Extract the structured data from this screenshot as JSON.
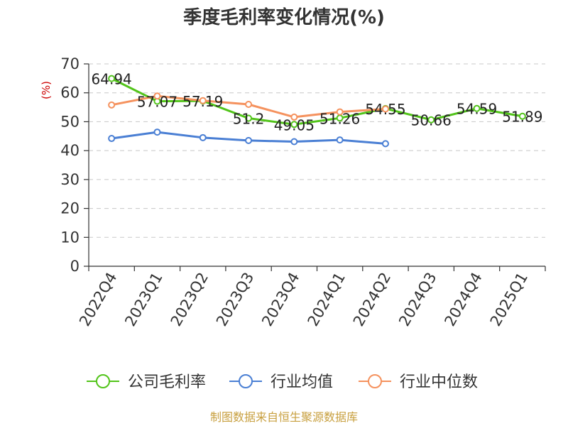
{
  "chart_data": {
    "type": "line",
    "title": "季度毛利率变化情况(%)",
    "ylabel": "(%)",
    "xlabel": "",
    "categories": [
      "2022Q4",
      "2023Q1",
      "2023Q2",
      "2023Q3",
      "2023Q4",
      "2024Q1",
      "2024Q2",
      "2024Q3",
      "2024Q4",
      "2025Q1"
    ],
    "ylim": [
      0,
      70
    ],
    "yticks": [
      0,
      10,
      20,
      30,
      40,
      50,
      60,
      70
    ],
    "grid": true,
    "legend_position": "bottom",
    "series": [
      {
        "name": "公司毛利率",
        "color": "#52c41a",
        "values": [
          64.94,
          57.07,
          57.19,
          51.2,
          49.05,
          51.26,
          54.55,
          50.66,
          54.59,
          51.89
        ],
        "labels": [
          "64.94",
          "57.07",
          "57.19",
          "51.2",
          "49.05",
          "51.26",
          "54.55",
          "50.66",
          "54.59",
          "51.89"
        ]
      },
      {
        "name": "行业均值",
        "color": "#4a7fd4",
        "values": [
          44.2,
          46.4,
          44.5,
          43.5,
          43.1,
          43.7,
          42.4,
          null,
          null,
          null
        ]
      },
      {
        "name": "行业中位数",
        "color": "#f5925e",
        "values": [
          55.8,
          58.9,
          57.3,
          56.0,
          51.6,
          53.4,
          54.4,
          null,
          null,
          null
        ]
      }
    ]
  },
  "source": "制图数据来自恒生聚源数据库"
}
